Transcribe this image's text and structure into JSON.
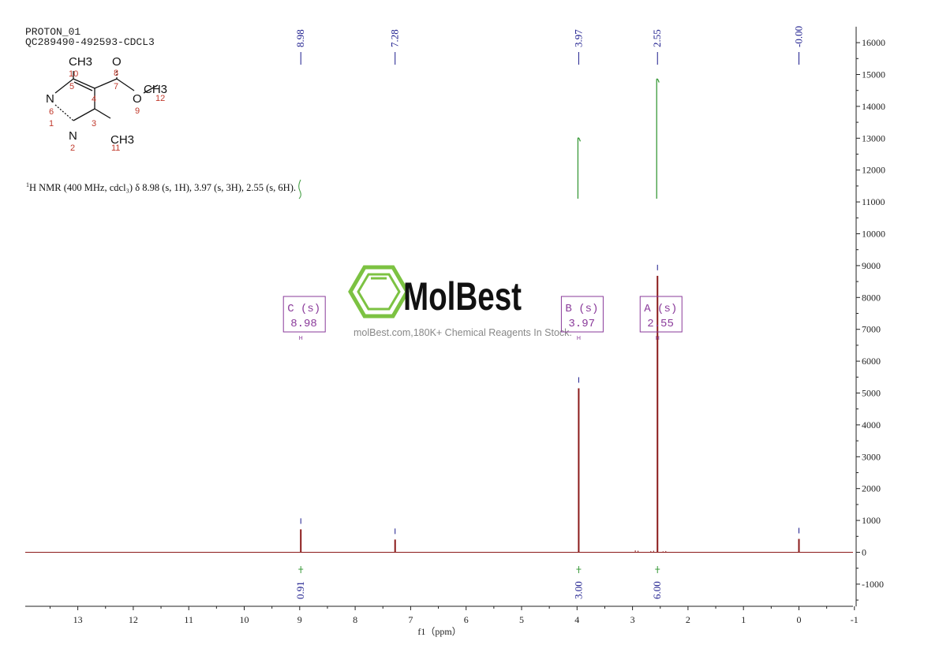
{
  "header": {
    "title_line1": "PROTON_01",
    "title_line2": "QC289490-492593-CDCL3"
  },
  "description": {
    "superscript": "1",
    "text": "H NMR (400 MHz, cdcl₃) δ 8.98 (s, 1H), 3.97 (s, 3H), 2.55 (s, 6H)."
  },
  "watermark": {
    "brand": "MolBest",
    "tagline": "molBest.com,180K+ Chemical Reagents In Stock."
  },
  "structure": {
    "atoms": [
      "CH3",
      "O",
      "N",
      "O",
      "CH3",
      "N",
      "CH3"
    ],
    "numbers": [
      "10",
      "5",
      "8",
      "7",
      "12",
      "9",
      "4",
      "6",
      "1",
      "3",
      "2",
      "11"
    ]
  },
  "colors": {
    "spectrum": "#8b1a1a",
    "integral": "#3a9a3a",
    "peak_label": "#1a1a8c",
    "multiplet_box": "#8a3a9a",
    "atom_number": "#c0392b",
    "watermark_green": "#7cc242"
  },
  "chart_data": {
    "type": "line",
    "title": "",
    "xlabel": "f1（ppm）",
    "ylabel": "",
    "xlim": [
      14,
      -1
    ],
    "ylim": [
      -1700,
      16500
    ],
    "x_reversed": true,
    "x_ticks": [
      13,
      12,
      11,
      10,
      9,
      8,
      7,
      6,
      5,
      4,
      3,
      2,
      1,
      0,
      -1
    ],
    "y_ticks": [
      16000,
      15000,
      14000,
      13000,
      12000,
      11000,
      10000,
      9000,
      8000,
      7000,
      6000,
      5000,
      4000,
      3000,
      2000,
      1000,
      0,
      -1000
    ],
    "series": [
      {
        "peaks": [
          {
            "ppm": 8.98,
            "height": 720
          },
          {
            "ppm": 7.28,
            "height": 400
          },
          {
            "ppm": 3.97,
            "height": 5150
          },
          {
            "ppm": 2.55,
            "height": 8680
          },
          {
            "ppm": 0.0,
            "height": 420
          }
        ],
        "noise": [
          {
            "ppm": 2.95,
            "height": 60
          },
          {
            "ppm": 2.9,
            "height": 50
          },
          {
            "ppm": 2.67,
            "height": 40
          },
          {
            "ppm": 2.62,
            "height": 50
          },
          {
            "ppm": 2.45,
            "height": 30
          },
          {
            "ppm": 2.4,
            "height": 40
          }
        ]
      }
    ],
    "peak_labels": [
      "8.98",
      "7.28",
      "3.97",
      "2.55",
      "-0.00"
    ],
    "peak_label_ppm": [
      8.98,
      7.28,
      3.97,
      2.55,
      0.0
    ],
    "integrals": [
      {
        "ppm": 3.97,
        "low": 11100,
        "high": 12900
      },
      {
        "ppm": 2.55,
        "low": 11100,
        "high": 14750
      }
    ],
    "integration_values": [
      {
        "ppm": 8.98,
        "label": "0.91"
      },
      {
        "ppm": 3.97,
        "label": "3.00"
      },
      {
        "ppm": 2.55,
        "label": "6.00"
      }
    ],
    "multiplets": [
      {
        "ppm": 8.98,
        "name": "C (s)",
        "shift": "8.98",
        "mark": "H"
      },
      {
        "ppm": 3.97,
        "name": "B (s)",
        "shift": "3.97",
        "mark": "H"
      },
      {
        "ppm": 2.55,
        "name": "A (s)",
        "shift": "2.55",
        "mark": "H"
      }
    ]
  }
}
